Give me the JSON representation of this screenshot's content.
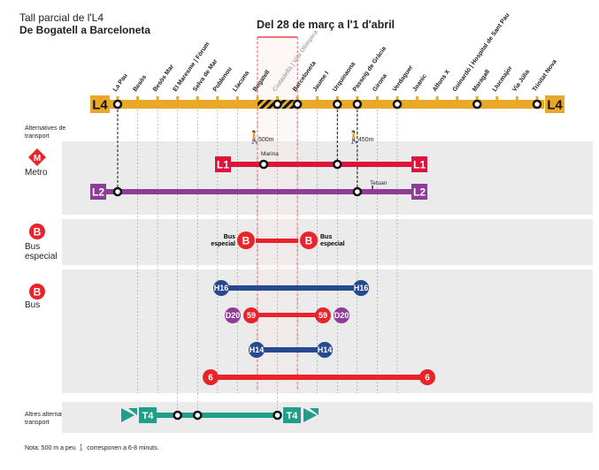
{
  "title": {
    "line1": "Tall parcial de l'L4",
    "line2": "De Bogatell a Barceloneta"
  },
  "period": "Del 28 de març a l'1 d'abril",
  "colors": {
    "l4": "#E8A92A",
    "l1": "#DC143C",
    "l2": "#8E3C97",
    "bus_red": "#E8242A",
    "bus_blue": "#274A8F",
    "d20": "#8E3C97",
    "tram": "#1F9E89",
    "band": "#EBEBEB",
    "cut": "#E8242A"
  },
  "l4_label": "L4",
  "stations": [
    {
      "name": "La Pau",
      "stop": true
    },
    {
      "name": "Besòs",
      "stop": false
    },
    {
      "name": "Besòs Mar",
      "stop": false
    },
    {
      "name": "El Maresme | Fòrum",
      "stop": false
    },
    {
      "name": "Selva de Mar",
      "stop": false
    },
    {
      "name": "Poblenou",
      "stop": false
    },
    {
      "name": "Llacuna",
      "stop": false
    },
    {
      "name": "Bogatell",
      "stop": false
    },
    {
      "name": "Ciutadella | Vila Olímpica",
      "stop": true,
      "closed": true
    },
    {
      "name": "Barceloneta",
      "stop": true
    },
    {
      "name": "Jaume I",
      "stop": false
    },
    {
      "name": "Urquinaona",
      "stop": true
    },
    {
      "name": "Passeig de Gràcia",
      "stop": true
    },
    {
      "name": "Girona",
      "stop": false
    },
    {
      "name": "Verdaguer",
      "stop": true
    },
    {
      "name": "Joanic",
      "stop": false
    },
    {
      "name": "Alfons X",
      "stop": false
    },
    {
      "name": "Guinardó | Hospital de Sant Pau",
      "stop": false
    },
    {
      "name": "Maragall",
      "stop": true
    },
    {
      "name": "Llucmajor",
      "stop": false
    },
    {
      "name": "Via Júlia",
      "stop": false
    },
    {
      "name": "Trinitat Nova",
      "stop": true
    }
  ],
  "alternatives_label": "Alternatives de transport",
  "walk": [
    {
      "distance": "500m"
    },
    {
      "distance": "450m"
    }
  ],
  "metro": {
    "icon_letter": "M",
    "label": "Metro",
    "l1": "L1",
    "l2": "L2",
    "marina": "Marina",
    "tetuan": "Tetuan"
  },
  "bus_especial": {
    "icon_letter": "B",
    "label": "Bus especial",
    "side_label": "Bus especial"
  },
  "bus": {
    "icon_letter": "B",
    "label": "Bus",
    "lines": [
      "H16",
      "D20",
      "59",
      "H14",
      "6"
    ]
  },
  "tram": {
    "label": "Altres alternatives de transport",
    "line": "T4"
  },
  "note": "Nota: 500 m a peu",
  "note_tail": "corresponen a 6-8 minuts."
}
